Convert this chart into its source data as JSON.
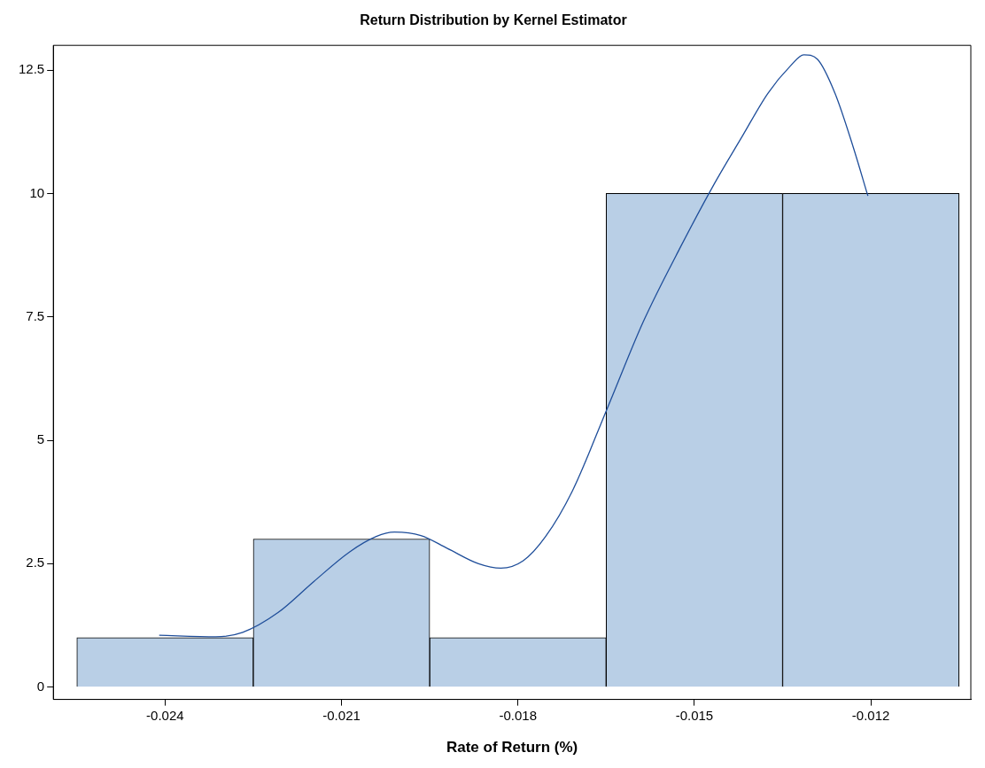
{
  "chart_data": {
    "type": "histogram",
    "title": "Return Distribution by Kernel Estimator",
    "xlabel": "Rate of Return (%)",
    "bins": [
      -0.0255,
      -0.0225,
      -0.0195,
      -0.0165,
      -0.0135,
      -0.0105
    ],
    "values": [
      1,
      3,
      1,
      10,
      10
    ],
    "color": "#b9cfe6",
    "series": [
      {
        "type": "line",
        "color": "#1f4e9a",
        "x": [
          -0.0241,
          -0.02314,
          -0.02268,
          -0.02208,
          -0.02147,
          -0.02086,
          -0.02041,
          -0.0201,
          -0.01965,
          -0.0192,
          -0.01867,
          -0.01829,
          -0.01791,
          -0.01753,
          -0.01708,
          -0.01647,
          -0.01587,
          -0.01526,
          -0.01465,
          -0.0142,
          -0.01375,
          -0.01337,
          -0.01314,
          -0.01291,
          -0.01261,
          -0.0123,
          -0.01205
        ],
        "values": [
          1.05,
          1.02,
          1.11,
          1.51,
          2.14,
          2.74,
          3.05,
          3.14,
          3.07,
          2.81,
          2.5,
          2.41,
          2.56,
          3.05,
          3.96,
          5.68,
          7.4,
          8.86,
          10.22,
          11.13,
          12.03,
          12.58,
          12.81,
          12.72,
          12.03,
          10.94,
          9.95
        ]
      }
    ],
    "xlim": [
      -0.0259,
      -0.0103
    ],
    "xticks": [
      -0.024,
      -0.021,
      -0.018,
      -0.015,
      -0.012
    ],
    "ylim": [
      -0.25,
      13
    ],
    "yticks": [
      0,
      2.5,
      5,
      7.5,
      10,
      12.5
    ],
    "grid": false,
    "legend": false,
    "marker": "none"
  }
}
